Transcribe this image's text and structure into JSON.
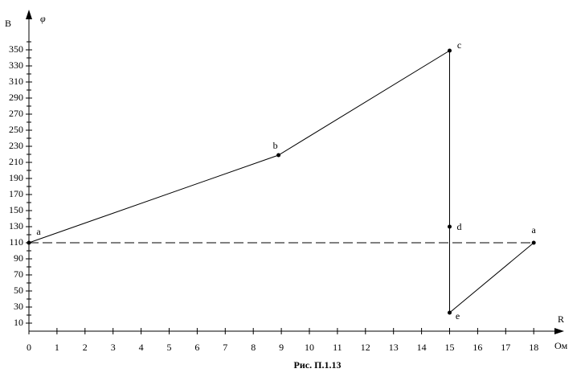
{
  "chart_data": {
    "type": "line",
    "y_label_unit": "B",
    "y_label_symbol": "φ",
    "x_label_symbol": "R",
    "x_label_unit": "Ом",
    "caption": "Рис. П.1.13",
    "x": [
      0,
      8.9,
      15,
      15,
      15,
      18
    ],
    "values": [
      110,
      219,
      349,
      130,
      23,
      110
    ],
    "point_labels": [
      "a",
      "b",
      "c",
      "d",
      "e",
      "a"
    ],
    "color": "#000000",
    "hline": 110,
    "xlim": [
      0,
      19
    ],
    "ylim": [
      0,
      390
    ],
    "xticks": [
      0,
      1,
      2,
      3,
      4,
      5,
      6,
      7,
      8,
      9,
      10,
      11,
      12,
      13,
      14,
      15,
      16,
      17,
      18
    ],
    "yticks": [
      10,
      30,
      50,
      70,
      90,
      110,
      130,
      150,
      170,
      190,
      210,
      230,
      250,
      270,
      290,
      310,
      330,
      350
    ],
    "yminorticks": [
      20,
      40,
      60,
      80,
      100,
      120,
      140,
      160,
      180,
      200,
      220,
      240,
      260,
      280,
      300,
      320,
      340,
      360
    ]
  }
}
